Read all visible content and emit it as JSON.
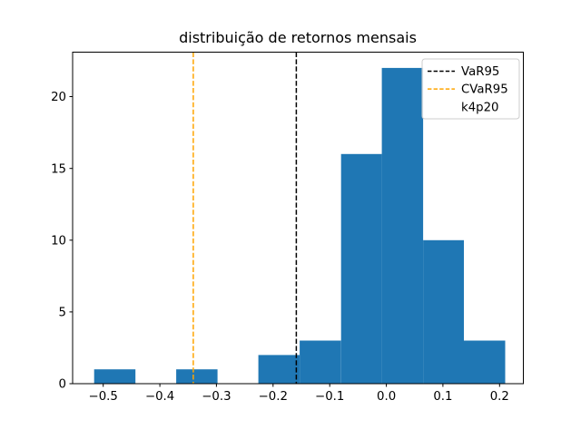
{
  "figure": {
    "background": "#ffffff"
  },
  "chart_data": {
    "type": "bar",
    "subtype": "histogram",
    "title": "distribuição de retornos mensais",
    "bar_color": "#1f77b4",
    "bin_edges": [
      -0.516,
      -0.443,
      -0.371,
      -0.298,
      -0.226,
      -0.153,
      -0.08,
      -0.008,
      0.065,
      0.137,
      0.21
    ],
    "counts": [
      1,
      0,
      1,
      0,
      2,
      3,
      16,
      22,
      10,
      3
    ],
    "xlim": [
      -0.554,
      0.242
    ],
    "ylim": [
      0,
      23.1
    ],
    "grid": false,
    "xticks": {
      "values": [
        -0.5,
        -0.4,
        -0.3,
        -0.2,
        -0.1,
        0.0,
        0.1,
        0.2
      ],
      "labels": [
        "−0.5",
        "−0.4",
        "−0.3",
        "−0.2",
        "−0.1",
        "0.0",
        "0.1",
        "0.2"
      ]
    },
    "yticks": {
      "values": [
        0,
        5,
        10,
        15,
        20
      ],
      "labels": [
        "0",
        "5",
        "10",
        "15",
        "20"
      ]
    },
    "vlines": [
      {
        "name": "VaR95",
        "x": -0.159,
        "color": "#000000",
        "linestyle": "dashed"
      },
      {
        "name": "CVaR95",
        "x": -0.341,
        "color": "#ffa500",
        "linestyle": "dashed"
      }
    ],
    "legend": {
      "position": "upper right",
      "entries": [
        {
          "label": "VaR95",
          "handle_color": "#000000",
          "handle_style": "dashed"
        },
        {
          "label": "CVaR95",
          "handle_color": "#ffa500",
          "handle_style": "dashed"
        },
        {
          "label": "k4p20",
          "handle_style": "none"
        }
      ]
    }
  }
}
